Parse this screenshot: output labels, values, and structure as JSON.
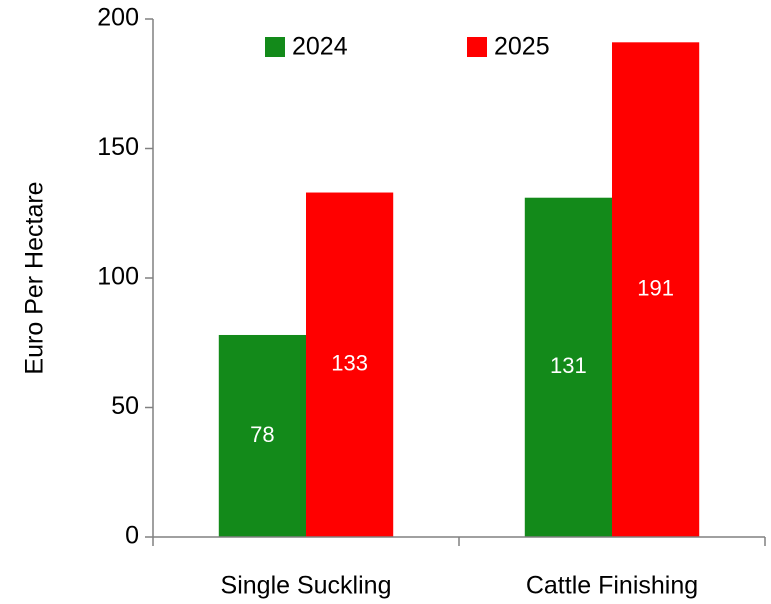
{
  "chart_data": {
    "type": "bar",
    "y_label": "Euro Per Hectare",
    "categories": [
      "Single Suckling",
      "Cattle Finishing"
    ],
    "series": [
      {
        "name": "2024",
        "color": "#138a1a",
        "values": [
          78,
          131
        ]
      },
      {
        "name": "2025",
        "color": "#ff0000",
        "values": [
          133,
          191
        ]
      }
    ],
    "ylim": [
      0,
      200
    ],
    "yticks": [
      0,
      50,
      100,
      150,
      200
    ],
    "legend": "top",
    "data_labels": true,
    "grid": false
  }
}
